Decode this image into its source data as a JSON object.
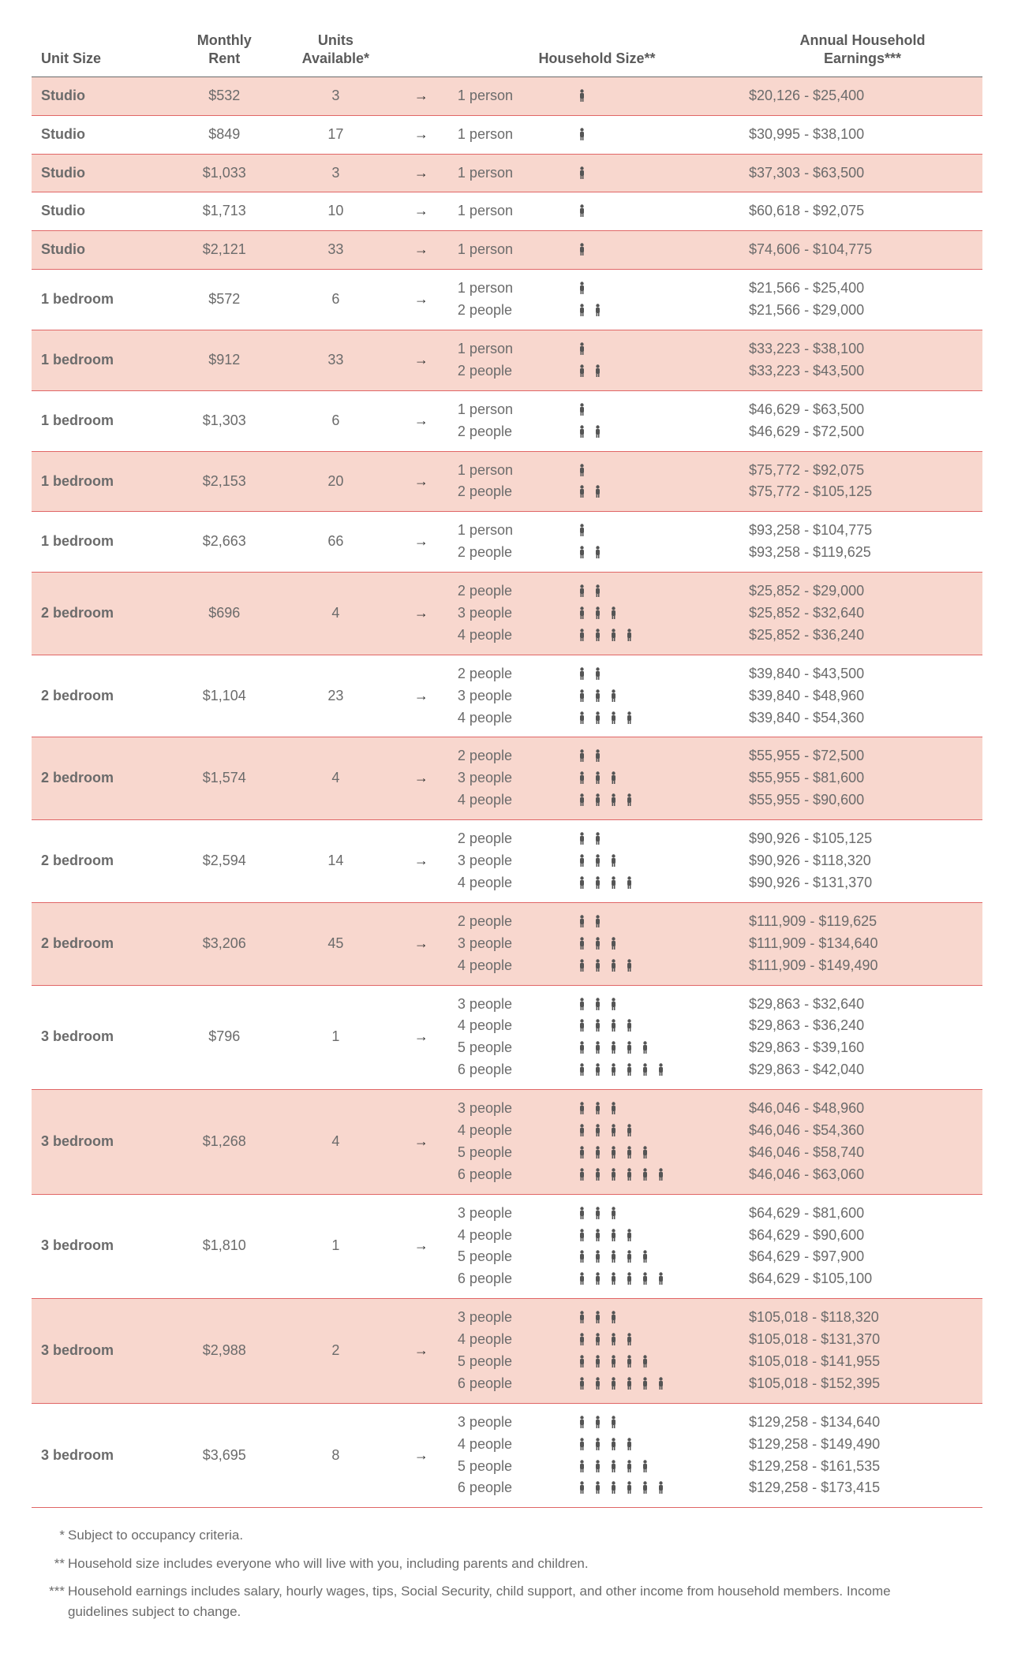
{
  "colors": {
    "row_divider": "#e06666",
    "header_divider": "#6b6b6b",
    "shaded_bg": "#f8d7ce",
    "text": "#6b6b6b",
    "icon": "#555555"
  },
  "headers": {
    "unit": "Unit Size",
    "rent": "Monthly\nRent",
    "avail": "Units\nAvailable*",
    "hh": "Household Size**",
    "earn": "Annual Household\nEarnings***"
  },
  "arrow_glyph": "→",
  "rows": [
    {
      "unit": "Studio",
      "rent": "$532",
      "avail": "3",
      "shaded": true,
      "hh": [
        {
          "label": "1 person",
          "count": 1,
          "earn": "$20,126 - $25,400"
        }
      ]
    },
    {
      "unit": "Studio",
      "rent": "$849",
      "avail": "17",
      "shaded": false,
      "hh": [
        {
          "label": "1 person",
          "count": 1,
          "earn": "$30,995 - $38,100"
        }
      ]
    },
    {
      "unit": "Studio",
      "rent": "$1,033",
      "avail": "3",
      "shaded": true,
      "hh": [
        {
          "label": "1 person",
          "count": 1,
          "earn": "$37,303 - $63,500"
        }
      ]
    },
    {
      "unit": "Studio",
      "rent": "$1,713",
      "avail": "10",
      "shaded": false,
      "hh": [
        {
          "label": "1 person",
          "count": 1,
          "earn": "$60,618 - $92,075"
        }
      ]
    },
    {
      "unit": "Studio",
      "rent": "$2,121",
      "avail": "33",
      "shaded": true,
      "hh": [
        {
          "label": "1 person",
          "count": 1,
          "earn": "$74,606 - $104,775"
        }
      ]
    },
    {
      "unit": "1 bedroom",
      "rent": "$572",
      "avail": "6",
      "shaded": false,
      "hh": [
        {
          "label": "1 person",
          "count": 1,
          "earn": "$21,566 - $25,400"
        },
        {
          "label": "2 people",
          "count": 2,
          "earn": "$21,566 - $29,000"
        }
      ]
    },
    {
      "unit": "1 bedroom",
      "rent": "$912",
      "avail": "33",
      "shaded": true,
      "hh": [
        {
          "label": "1 person",
          "count": 1,
          "earn": "$33,223 - $38,100"
        },
        {
          "label": "2 people",
          "count": 2,
          "earn": "$33,223 - $43,500"
        }
      ]
    },
    {
      "unit": "1 bedroom",
      "rent": "$1,303",
      "avail": "6",
      "shaded": false,
      "hh": [
        {
          "label": "1 person",
          "count": 1,
          "earn": "$46,629 - $63,500"
        },
        {
          "label": "2 people",
          "count": 2,
          "earn": "$46,629 - $72,500"
        }
      ]
    },
    {
      "unit": "1 bedroom",
      "rent": "$2,153",
      "avail": "20",
      "shaded": true,
      "hh": [
        {
          "label": "1 person",
          "count": 1,
          "earn": "$75,772 - $92,075"
        },
        {
          "label": "2 people",
          "count": 2,
          "earn": "$75,772 - $105,125"
        }
      ]
    },
    {
      "unit": "1 bedroom",
      "rent": "$2,663",
      "avail": "66",
      "shaded": false,
      "hh": [
        {
          "label": "1 person",
          "count": 1,
          "earn": "$93,258 - $104,775"
        },
        {
          "label": "2 people",
          "count": 2,
          "earn": "$93,258 - $119,625"
        }
      ]
    },
    {
      "unit": "2 bedroom",
      "rent": "$696",
      "avail": "4",
      "shaded": true,
      "hh": [
        {
          "label": "2 people",
          "count": 2,
          "earn": "$25,852 - $29,000"
        },
        {
          "label": "3 people",
          "count": 3,
          "earn": "$25,852 - $32,640"
        },
        {
          "label": "4 people",
          "count": 4,
          "earn": "$25,852 - $36,240"
        }
      ]
    },
    {
      "unit": "2 bedroom",
      "rent": "$1,104",
      "avail": "23",
      "shaded": false,
      "hh": [
        {
          "label": "2 people",
          "count": 2,
          "earn": "$39,840 - $43,500"
        },
        {
          "label": "3 people",
          "count": 3,
          "earn": "$39,840 - $48,960"
        },
        {
          "label": "4 people",
          "count": 4,
          "earn": "$39,840 - $54,360"
        }
      ]
    },
    {
      "unit": "2 bedroom",
      "rent": "$1,574",
      "avail": "4",
      "shaded": true,
      "hh": [
        {
          "label": "2 people",
          "count": 2,
          "earn": "$55,955 - $72,500"
        },
        {
          "label": "3 people",
          "count": 3,
          "earn": "$55,955 - $81,600"
        },
        {
          "label": "4 people",
          "count": 4,
          "earn": "$55,955 - $90,600"
        }
      ]
    },
    {
      "unit": "2 bedroom",
      "rent": "$2,594",
      "avail": "14",
      "shaded": false,
      "hh": [
        {
          "label": "2 people",
          "count": 2,
          "earn": "$90,926 - $105,125"
        },
        {
          "label": "3 people",
          "count": 3,
          "earn": "$90,926 - $118,320"
        },
        {
          "label": "4 people",
          "count": 4,
          "earn": "$90,926 - $131,370"
        }
      ]
    },
    {
      "unit": "2 bedroom",
      "rent": "$3,206",
      "avail": "45",
      "shaded": true,
      "hh": [
        {
          "label": "2 people",
          "count": 2,
          "earn": "$111,909 - $119,625"
        },
        {
          "label": "3 people",
          "count": 3,
          "earn": "$111,909 - $134,640"
        },
        {
          "label": "4 people",
          "count": 4,
          "earn": "$111,909 - $149,490"
        }
      ]
    },
    {
      "unit": "3 bedroom",
      "rent": "$796",
      "avail": "1",
      "shaded": false,
      "hh": [
        {
          "label": "3 people",
          "count": 3,
          "earn": "$29,863 - $32,640"
        },
        {
          "label": "4 people",
          "count": 4,
          "earn": "$29,863 - $36,240"
        },
        {
          "label": "5 people",
          "count": 5,
          "earn": "$29,863 - $39,160"
        },
        {
          "label": "6 people",
          "count": 6,
          "earn": "$29,863 - $42,040"
        }
      ]
    },
    {
      "unit": "3 bedroom",
      "rent": "$1,268",
      "avail": "4",
      "shaded": true,
      "hh": [
        {
          "label": "3 people",
          "count": 3,
          "earn": "$46,046 - $48,960"
        },
        {
          "label": "4 people",
          "count": 4,
          "earn": "$46,046 - $54,360"
        },
        {
          "label": "5 people",
          "count": 5,
          "earn": "$46,046 - $58,740"
        },
        {
          "label": "6 people",
          "count": 6,
          "earn": "$46,046 - $63,060"
        }
      ]
    },
    {
      "unit": "3 bedroom",
      "rent": "$1,810",
      "avail": "1",
      "shaded": false,
      "hh": [
        {
          "label": "3 people",
          "count": 3,
          "earn": "$64,629 - $81,600"
        },
        {
          "label": "4 people",
          "count": 4,
          "earn": "$64,629 - $90,600"
        },
        {
          "label": "5 people",
          "count": 5,
          "earn": "$64,629 - $97,900"
        },
        {
          "label": "6 people",
          "count": 6,
          "earn": "$64,629 - $105,100"
        }
      ]
    },
    {
      "unit": "3 bedroom",
      "rent": "$2,988",
      "avail": "2",
      "shaded": true,
      "hh": [
        {
          "label": "3 people",
          "count": 3,
          "earn": "$105,018 - $118,320"
        },
        {
          "label": "4 people",
          "count": 4,
          "earn": "$105,018 - $131,370"
        },
        {
          "label": "5 people",
          "count": 5,
          "earn": "$105,018 - $141,955"
        },
        {
          "label": "6 people",
          "count": 6,
          "earn": "$105,018 - $152,395"
        }
      ]
    },
    {
      "unit": "3 bedroom",
      "rent": "$3,695",
      "avail": "8",
      "shaded": false,
      "hh": [
        {
          "label": "3 people",
          "count": 3,
          "earn": "$129,258 - $134,640"
        },
        {
          "label": "4 people",
          "count": 4,
          "earn": "$129,258 - $149,490"
        },
        {
          "label": "5 people",
          "count": 5,
          "earn": "$129,258 - $161,535"
        },
        {
          "label": "6 people",
          "count": 6,
          "earn": "$129,258 - $173,415"
        }
      ]
    }
  ],
  "footnotes": [
    {
      "stars": "*",
      "text": "Subject to occupancy criteria."
    },
    {
      "stars": "**",
      "text": "Household size includes everyone who will live with you, including parents and children."
    },
    {
      "stars": "***",
      "text": "Household earnings includes salary, hourly wages, tips, Social Security, child support, and other income from household members. Income guidelines subject to change."
    }
  ]
}
